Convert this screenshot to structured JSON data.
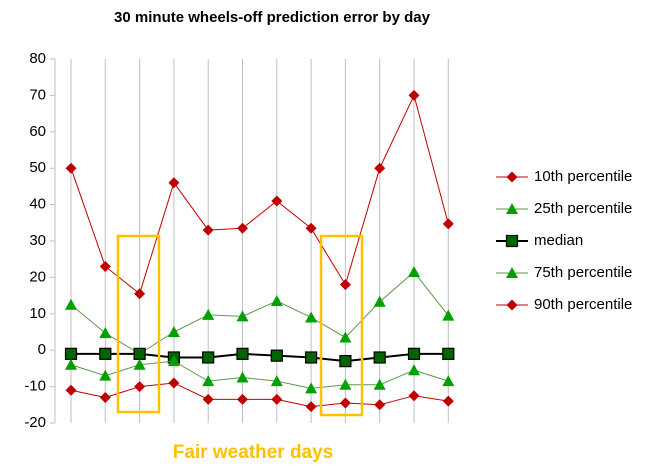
{
  "chart_data": {
    "type": "line",
    "title": "30 minute wheels-off prediction error by day",
    "annotation": "Fair weather days",
    "categories": [
      null,
      null,
      null,
      null,
      null,
      null,
      null,
      null,
      null,
      null,
      null,
      null
    ],
    "series": [
      {
        "name": "10th percentile",
        "color": "#c00000",
        "marker": "diamond",
        "values": [
          50,
          23,
          15.5,
          46,
          33,
          33.5,
          41,
          33.5,
          18,
          50,
          70,
          34.7
        ]
      },
      {
        "name": "25th percentile",
        "color": "#00a000",
        "marker": "triangle",
        "values": [
          12.5,
          4.7,
          -1,
          5,
          9.7,
          9.3,
          13.5,
          9,
          3.5,
          13.3,
          21.5,
          9.5
        ]
      },
      {
        "name": "median",
        "color": "#000000",
        "marker": "square",
        "values": [
          -1,
          -1,
          -1,
          -2,
          -2,
          -1,
          -1.5,
          -2,
          -3,
          -2,
          -1,
          -1
        ]
      },
      {
        "name": "75th percentile",
        "color": "#00a000",
        "marker": "triangle",
        "values": [
          -4,
          -7,
          -4,
          -3,
          -8.5,
          -7.5,
          -8.5,
          -10.5,
          -9.5,
          -9.5,
          -5.5,
          -8.5
        ]
      },
      {
        "name": "90th percentile",
        "color": "#c00000",
        "marker": "diamond",
        "values": [
          -11,
          -13,
          -10,
          -9,
          -13.5,
          -13.5,
          -13.5,
          -15.5,
          -14.5,
          -15,
          -12.5,
          -14
        ]
      }
    ],
    "ylim": [
      -20,
      80
    ],
    "yticks": [
      -20,
      -10,
      0,
      10,
      20,
      30,
      40,
      50,
      60,
      70,
      80
    ],
    "grid": true,
    "legend": "right"
  }
}
